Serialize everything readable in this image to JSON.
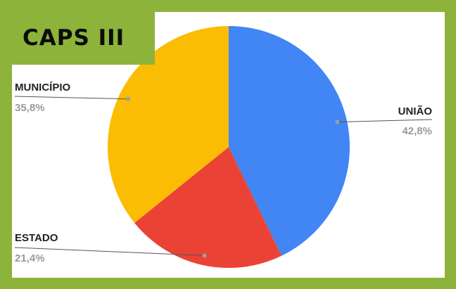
{
  "chart_data": {
    "type": "pie",
    "title": "CAPS III",
    "categories": [
      "UNIÃO",
      "ESTADO",
      "MUNICÍPIO"
    ],
    "values": [
      42.8,
      21.4,
      35.8
    ],
    "value_labels": [
      "42,8%",
      "21,4%",
      "35,8%"
    ],
    "colors": [
      "#4285f4",
      "#ea4335",
      "#fbbc04"
    ],
    "start_angle_deg": 0,
    "direction": "clockwise",
    "legend": "none"
  },
  "colors": {
    "frame": "#8db33a",
    "background": "#ffffff",
    "label_name": "#222222",
    "label_value": "#9b9b9b",
    "leader_line": "#555555"
  }
}
